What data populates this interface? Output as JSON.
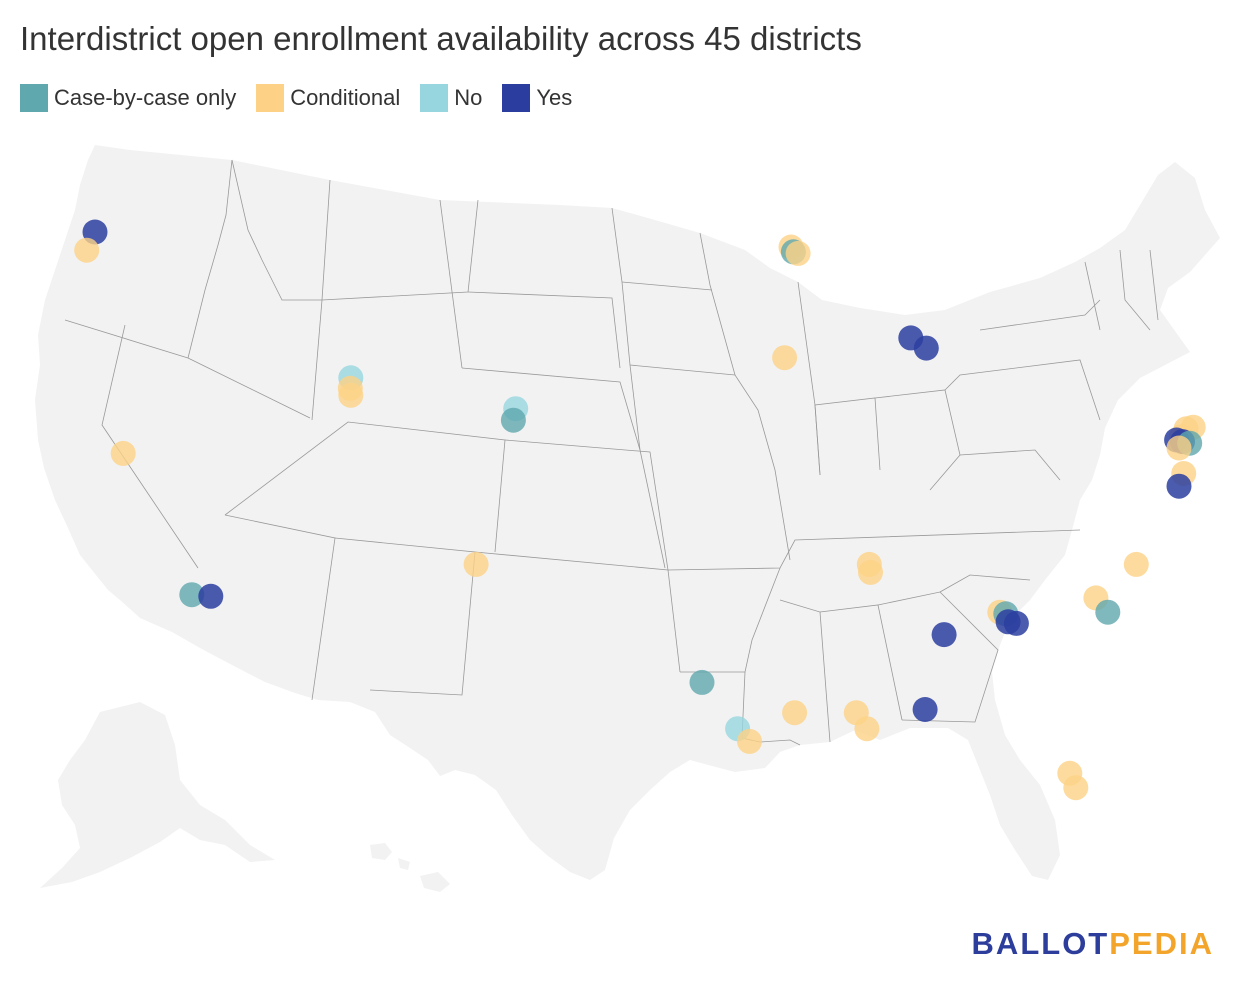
{
  "title": "Interdistrict open enrollment availability across 45 districts",
  "legend": [
    {
      "label": "Case-by-case only",
      "color": "#5fa8ae",
      "key": "case"
    },
    {
      "label": "Conditional",
      "color": "#fdd286",
      "key": "cond"
    },
    {
      "label": "No",
      "color": "#97d6de",
      "key": "no"
    },
    {
      "label": "Yes",
      "color": "#2b3ea0",
      "key": "yes"
    }
  ],
  "logo": {
    "part1": "BALLOT",
    "part2": "PEDIA"
  },
  "map": {
    "land_color": "#f2f2f2",
    "border_color": "#999999",
    "districts": [
      {
        "lat": 45.52,
        "lon": -122.68,
        "cat": "yes"
      },
      {
        "lat": 44.95,
        "lon": -123.03,
        "cat": "cond"
      },
      {
        "lat": 38.58,
        "lon": -121.49,
        "cat": "cond"
      },
      {
        "lat": 34.15,
        "lon": -118.6,
        "cat": "case"
      },
      {
        "lat": 34.1,
        "lon": -117.8,
        "cat": "yes"
      },
      {
        "lat": 40.95,
        "lon": -111.9,
        "cat": "no"
      },
      {
        "lat": 40.62,
        "lon": -111.92,
        "cat": "cond"
      },
      {
        "lat": 40.4,
        "lon": -111.9,
        "cat": "cond"
      },
      {
        "lat": 39.98,
        "lon": -104.95,
        "cat": "no"
      },
      {
        "lat": 39.62,
        "lon": -105.05,
        "cat": "case"
      },
      {
        "lat": 35.1,
        "lon": -106.62,
        "cat": "cond"
      },
      {
        "lat": 45.05,
        "lon": -93.35,
        "cat": "cond"
      },
      {
        "lat": 44.9,
        "lon": -93.25,
        "cat": "case"
      },
      {
        "lat": 44.85,
        "lon": -93.05,
        "cat": "cond"
      },
      {
        "lat": 41.58,
        "lon": -93.62,
        "cat": "cond"
      },
      {
        "lat": 42.2,
        "lon": -88.3,
        "cat": "yes"
      },
      {
        "lat": 41.88,
        "lon": -87.65,
        "cat": "yes"
      },
      {
        "lat": 39.35,
        "lon": -76.7,
        "cat": "cond"
      },
      {
        "lat": 39.4,
        "lon": -76.4,
        "cat": "cond"
      },
      {
        "lat": 39.1,
        "lon": -76.9,
        "cat": "cond"
      },
      {
        "lat": 39.0,
        "lon": -77.1,
        "cat": "yes"
      },
      {
        "lat": 38.95,
        "lon": -76.85,
        "cat": "yes"
      },
      {
        "lat": 38.9,
        "lon": -76.55,
        "cat": "case"
      },
      {
        "lat": 38.75,
        "lon": -77.0,
        "cat": "cond"
      },
      {
        "lat": 37.95,
        "lon": -76.8,
        "cat": "cond"
      },
      {
        "lat": 37.55,
        "lon": -77.0,
        "cat": "yes"
      },
      {
        "lat": 35.1,
        "lon": -90.05,
        "cat": "cond"
      },
      {
        "lat": 34.85,
        "lon": -90.0,
        "cat": "cond"
      },
      {
        "lat": 33.6,
        "lon": -84.55,
        "cat": "cond"
      },
      {
        "lat": 33.55,
        "lon": -84.3,
        "cat": "case"
      },
      {
        "lat": 33.3,
        "lon": -84.2,
        "cat": "yes"
      },
      {
        "lat": 33.25,
        "lon": -83.85,
        "cat": "yes"
      },
      {
        "lat": 32.9,
        "lon": -86.9,
        "cat": "yes"
      },
      {
        "lat": 30.55,
        "lon": -87.7,
        "cat": "yes"
      },
      {
        "lat": 35.1,
        "lon": -78.8,
        "cat": "cond"
      },
      {
        "lat": 34.05,
        "lon": -80.5,
        "cat": "cond"
      },
      {
        "lat": 33.6,
        "lon": -80.0,
        "cat": "case"
      },
      {
        "lat": 31.4,
        "lon": -97.1,
        "cat": "case"
      },
      {
        "lat": 29.95,
        "lon": -95.6,
        "cat": "no"
      },
      {
        "lat": 29.55,
        "lon": -95.1,
        "cat": "cond"
      },
      {
        "lat": 30.45,
        "lon": -93.2,
        "cat": "cond"
      },
      {
        "lat": 30.45,
        "lon": -90.6,
        "cat": "cond"
      },
      {
        "lat": 29.95,
        "lon": -90.15,
        "cat": "cond"
      },
      {
        "lat": 28.55,
        "lon": -81.6,
        "cat": "cond"
      },
      {
        "lat": 28.1,
        "lon": -81.35,
        "cat": "cond"
      }
    ]
  }
}
